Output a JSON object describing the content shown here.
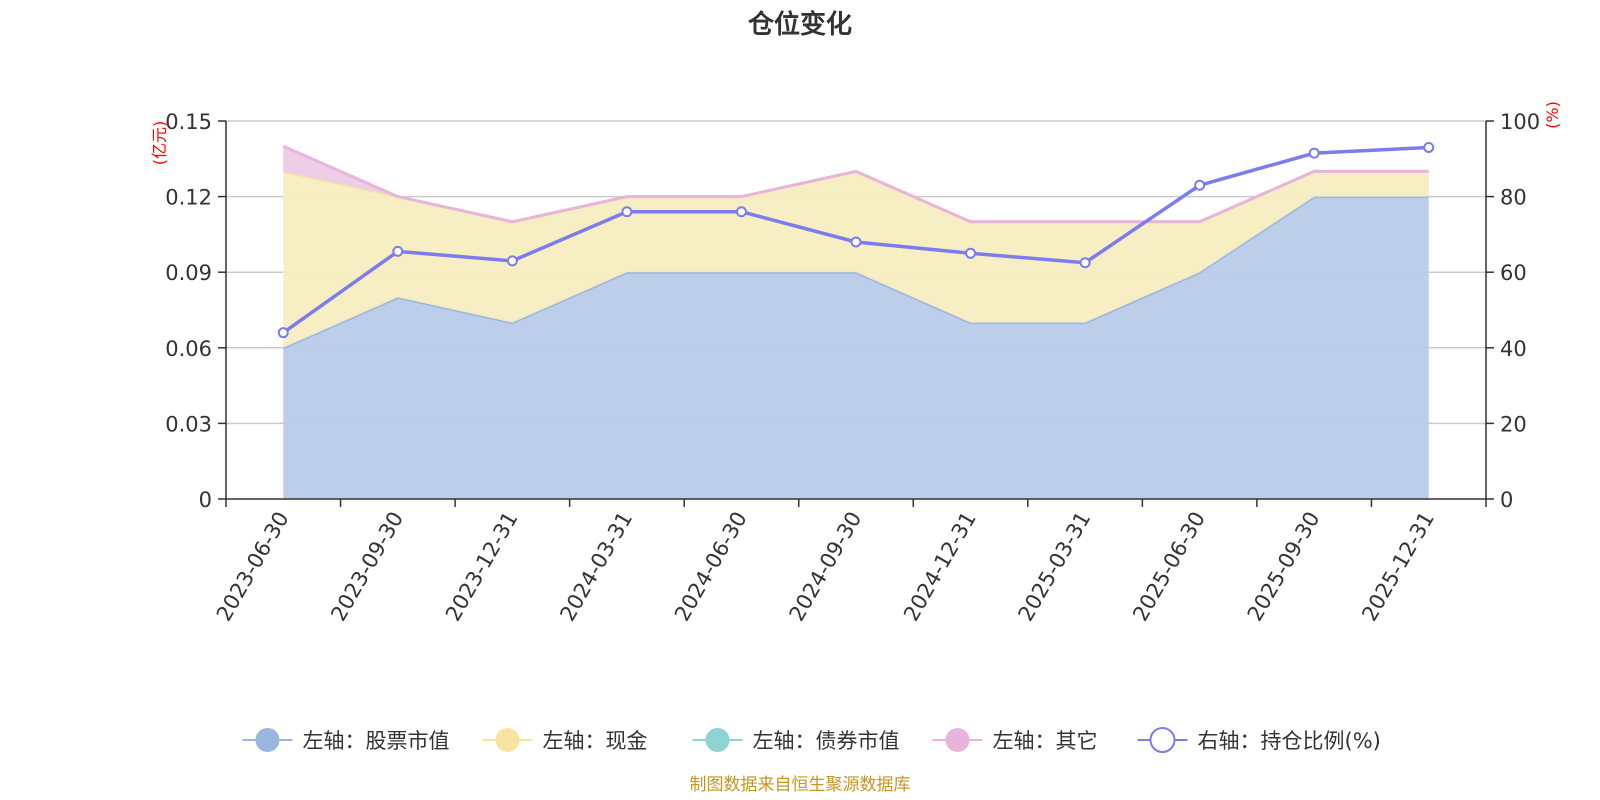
{
  "chart_data": {
    "type": "area",
    "title": "仓位变化",
    "left_axis_unit": "(亿元)",
    "right_axis_unit": "(%)",
    "categories": [
      "2023-06-30",
      "2023-09-30",
      "2023-12-31",
      "2024-03-31",
      "2024-06-30",
      "2024-09-30",
      "2024-12-31",
      "2025-03-31",
      "2025-06-30",
      "2025-09-30",
      "2025-12-31"
    ],
    "left_axis": {
      "min": 0,
      "max": 0.15,
      "ticks": [
        "0",
        "0.03",
        "0.06",
        "0.09",
        "0.12",
        "0.15"
      ]
    },
    "right_axis": {
      "min": 0,
      "max": 100,
      "ticks": [
        "0",
        "20",
        "40",
        "60",
        "80",
        "100"
      ]
    },
    "grid": true,
    "legend_position": "bottom",
    "series": [
      {
        "name": "左轴：股票市值",
        "axis": "left",
        "stack": true,
        "color": "#9ab5e0",
        "fill": "#b8cbe9",
        "values": [
          0.06,
          0.08,
          0.07,
          0.09,
          0.09,
          0.09,
          0.07,
          0.07,
          0.09,
          0.12,
          0.12
        ]
      },
      {
        "name": "左轴：现金",
        "axis": "left",
        "stack": true,
        "color": "#f7e4a0",
        "fill": "#f8edc0",
        "values": [
          0.07,
          0.04,
          0.04,
          0.03,
          0.03,
          0.04,
          0.04,
          0.04,
          0.02,
          0.01,
          0.01
        ]
      },
      {
        "name": "左轴：债券市值",
        "axis": "left",
        "stack": true,
        "color": "#8fd3d3",
        "fill": "#b5e3e3",
        "values": [
          0,
          0,
          0,
          0,
          0,
          0,
          0,
          0,
          0,
          0,
          0
        ]
      },
      {
        "name": "左轴：其它",
        "axis": "left",
        "stack": true,
        "color": "#e8b4dc",
        "fill": "#edcbe6",
        "values": [
          0.01,
          0,
          0,
          0,
          0,
          0,
          0,
          0,
          0,
          0,
          0
        ]
      },
      {
        "name": "右轴：持仓比例(%)",
        "axis": "right",
        "type": "line",
        "color": "#7b7ced",
        "values": [
          44,
          65.5,
          63,
          76,
          76,
          68,
          65,
          62.5,
          83,
          91.5,
          93
        ]
      }
    ]
  },
  "source_note": "制图数据来自恒生聚源数据库"
}
